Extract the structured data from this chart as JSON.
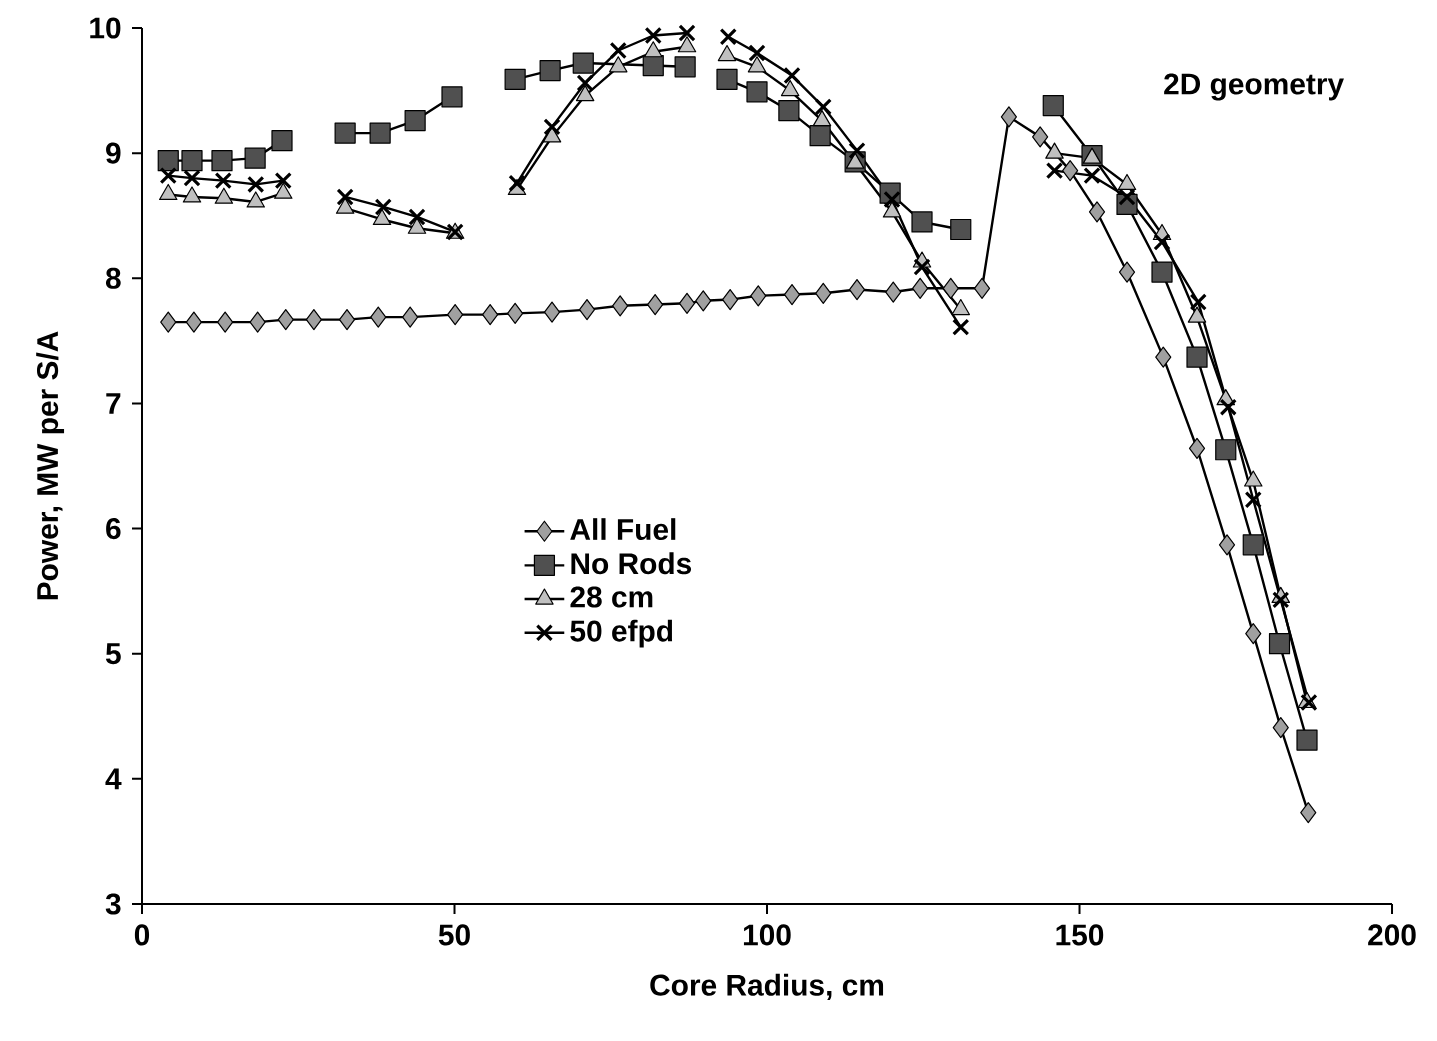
{
  "chart_data": {
    "type": "line",
    "xlabel": "Core Radius, cm",
    "ylabel": "Power, MW per S/A",
    "annotations": [
      "2D geometry"
    ],
    "xlim": [
      0,
      200
    ],
    "ylim": [
      3,
      10
    ],
    "xticks": [
      0,
      50,
      100,
      150,
      200
    ],
    "yticks": [
      3,
      4,
      5,
      6,
      7,
      8,
      9,
      10
    ],
    "grid": false,
    "legend": "left",
    "line_style": "solid",
    "series": [
      {
        "name": "All Fuel",
        "color": "#a0a0a0",
        "marker": "diamond",
        "x": [
          4.2,
          8.3,
          13.3,
          18.5,
          23,
          27.5,
          32.8,
          37.8,
          42.9,
          50.1,
          55.7,
          59.7,
          65.6,
          71.2,
          76.5,
          82.1,
          87.2,
          89.8,
          94.1,
          98.6,
          104,
          109,
          114.4,
          120.2,
          124.5,
          129.4,
          134.4,
          138.7,
          143.7,
          148.5,
          152.8,
          157.6,
          163.4,
          168.8,
          173.6,
          177.8,
          182.2,
          186.6
        ],
        "values": [
          7.65,
          7.65,
          7.65,
          7.65,
          7.67,
          7.67,
          7.67,
          7.69,
          7.69,
          7.71,
          7.71,
          7.72,
          7.73,
          7.75,
          7.78,
          7.79,
          7.8,
          7.82,
          7.83,
          7.86,
          7.87,
          7.88,
          7.91,
          7.89,
          7.92,
          7.92,
          7.92,
          9.29,
          9.13,
          8.86,
          8.53,
          8.05,
          7.37,
          6.64,
          5.87,
          5.16,
          4.41,
          3.73
        ]
      },
      {
        "name": "No Rods",
        "color": "#505050",
        "marker": "square",
        "x": [
          4.2,
          8.0,
          12.8,
          18.1,
          22.4,
          27.5,
          32.5,
          38.1,
          43.7,
          49.6,
          55,
          59.7,
          65.3,
          70.6,
          81.8,
          86.9,
          90,
          93.6,
          98.4,
          103.5,
          108.5,
          114.1,
          119.7,
          124.8,
          131,
          138,
          145.8,
          152,
          157.6,
          163.2,
          168.8,
          173.4,
          177.8,
          182,
          186.4
        ],
        "values": [
          8.94,
          8.94,
          8.94,
          8.96,
          9.1,
          null,
          9.16,
          9.16,
          9.26,
          9.45,
          null,
          9.59,
          9.66,
          9.72,
          9.7,
          9.69,
          null,
          9.59,
          9.49,
          9.34,
          9.14,
          8.93,
          8.68,
          8.45,
          8.39,
          null,
          9.38,
          8.98,
          8.59,
          8.05,
          7.37,
          6.63,
          5.87,
          5.08,
          4.31
        ]
      },
      {
        "name": "28 cm",
        "color": "#c0c0c0",
        "marker": "triangle",
        "x": [
          4.2,
          8.0,
          13.1,
          18.2,
          22.6,
          27.5,
          32.5,
          38.4,
          44,
          50.1,
          55,
          60,
          65.6,
          70.9,
          76.2,
          81.8,
          87.2,
          90,
          93.6,
          98.4,
          103.7,
          108.8,
          114.1,
          120,
          124.8,
          131,
          138,
          146,
          152,
          157.6,
          163.2,
          168.8,
          173.4,
          177.8,
          182.2,
          186.4
        ],
        "values": [
          8.67,
          8.65,
          8.64,
          8.61,
          8.68,
          null,
          8.56,
          8.47,
          8.4,
          8.36,
          null,
          8.71,
          9.13,
          9.46,
          9.69,
          9.81,
          9.85,
          null,
          9.78,
          9.69,
          9.5,
          9.26,
          8.92,
          8.53,
          8.13,
          7.75,
          null,
          9.0,
          8.96,
          8.75,
          8.35,
          7.69,
          7.03,
          6.38,
          5.45,
          4.61
        ]
      },
      {
        "name": "50 efpd",
        "color": "#000000",
        "marker": "cross",
        "x": [
          4.2,
          8.0,
          13.0,
          18.2,
          22.6,
          27.5,
          32.5,
          38.6,
          44,
          50.1,
          55,
          60,
          65.6,
          70.9,
          76.2,
          81.8,
          87.2,
          90,
          93.8,
          98.4,
          104,
          109,
          114.4,
          120,
          124.8,
          131,
          138,
          146,
          152,
          157.6,
          163.2,
          169,
          173.8,
          177.8,
          182.2,
          186.7
        ],
        "values": [
          8.82,
          8.8,
          8.78,
          8.75,
          8.78,
          null,
          8.65,
          8.57,
          8.49,
          8.37,
          null,
          8.76,
          9.21,
          9.56,
          9.82,
          9.94,
          9.96,
          null,
          9.93,
          9.8,
          9.62,
          9.37,
          9.02,
          8.63,
          8.09,
          7.61,
          null,
          8.86,
          8.82,
          8.65,
          8.29,
          7.81,
          6.97,
          6.23,
          5.43,
          4.61
        ]
      }
    ]
  }
}
